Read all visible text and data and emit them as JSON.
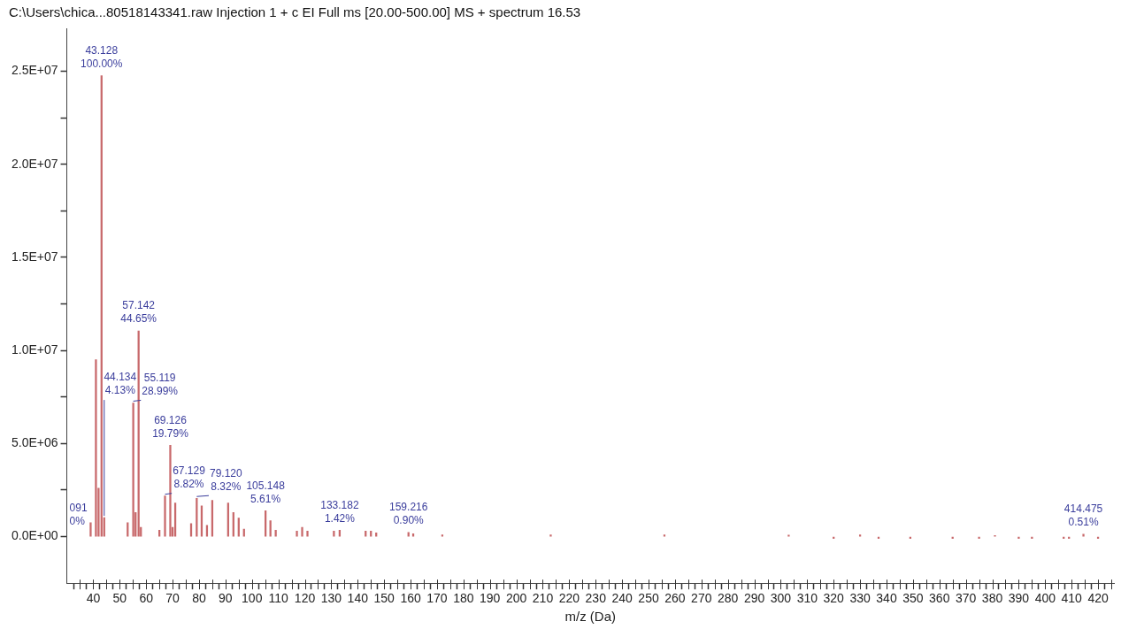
{
  "chart_data": {
    "type": "bar",
    "title": "C:\\Users\\chica...80518143341.raw Injection 1 + c EI Full ms [20.00-500.00] MS + spectrum 16.53",
    "xlabel": "m/z (Da)",
    "color": "#c8696b",
    "x": [
      39,
      41,
      42,
      43.128,
      44.134,
      53,
      55.119,
      56,
      57.142,
      58,
      65,
      67.129,
      69.126,
      70,
      71,
      77,
      79.12,
      81,
      83,
      85,
      91,
      93,
      95,
      97,
      105.148,
      107,
      109,
      117,
      119,
      121,
      131,
      133.182,
      143,
      145,
      147,
      159.216,
      161,
      172,
      213,
      256,
      303,
      320,
      330,
      337,
      349,
      365,
      375,
      381,
      390,
      395,
      407,
      409,
      414.475,
      420
    ],
    "values": [
      750000,
      9500000,
      2600000,
      24760000,
      1020000,
      750000,
      7180000,
      1300000,
      11050000,
      500000,
      350000,
      2180000,
      4900000,
      500000,
      1800000,
      700000,
      2060000,
      1650000,
      600000,
      1950000,
      1800000,
      1300000,
      1000000,
      400000,
      1390000,
      850000,
      350000,
      300000,
      500000,
      300000,
      300000,
      350000,
      300000,
      300000,
      200000,
      220000,
      150000,
      100000,
      100000,
      100000,
      80000,
      -100000,
      100000,
      -100000,
      -100000,
      -100000,
      -100000,
      60000,
      -100000,
      -100000,
      -100000,
      -100000,
      130000,
      -100000
    ],
    "xlim": [
      30,
      426
    ],
    "ylim": [
      -2500000,
      27300000
    ],
    "xticks": [
      {
        "value": 35,
        "label": null
      },
      40,
      {
        "value": 45,
        "label": null
      },
      50,
      {
        "value": 55,
        "label": null
      },
      60,
      {
        "value": 65,
        "label": null
      },
      70,
      {
        "value": 75,
        "label": null
      },
      80,
      {
        "value": 85,
        "label": null
      },
      90,
      {
        "value": 95,
        "label": null
      },
      100,
      {
        "value": 105,
        "label": null
      },
      110,
      {
        "value": 115,
        "label": null
      },
      120,
      {
        "value": 125,
        "label": null
      },
      130,
      {
        "value": 135,
        "label": null
      },
      140,
      {
        "value": 145,
        "label": null
      },
      150,
      {
        "value": 155,
        "label": null
      },
      160,
      {
        "value": 165,
        "label": null
      },
      170,
      {
        "value": 175,
        "label": null
      },
      180,
      {
        "value": 185,
        "label": null
      },
      190,
      {
        "value": 195,
        "label": null
      },
      200,
      {
        "value": 205,
        "label": null
      },
      210,
      {
        "value": 215,
        "label": null
      },
      220,
      {
        "value": 225,
        "label": null
      },
      230,
      {
        "value": 235,
        "label": null
      },
      240,
      {
        "value": 245,
        "label": null
      },
      250,
      {
        "value": 255,
        "label": null
      },
      260,
      {
        "value": 265,
        "label": null
      },
      270,
      {
        "value": 275,
        "label": null
      },
      280,
      {
        "value": 285,
        "label": null
      },
      290,
      {
        "value": 295,
        "label": null
      },
      300,
      {
        "value": 305,
        "label": null
      },
      310,
      {
        "value": 315,
        "label": null
      },
      320,
      {
        "value": 325,
        "label": null
      },
      330,
      {
        "value": 335,
        "label": null
      },
      340,
      {
        "value": 345,
        "label": null
      },
      350,
      {
        "value": 355,
        "label": null
      },
      360,
      {
        "value": 365,
        "label": null
      },
      370,
      {
        "value": 375,
        "label": null
      },
      380,
      {
        "value": 385,
        "label": null
      },
      390,
      {
        "value": 395,
        "label": null
      },
      400,
      {
        "value": 405,
        "label": null
      },
      410,
      {
        "value": 415,
        "label": null
      },
      420,
      {
        "value": 425,
        "label": null
      }
    ],
    "yticks": [
      {
        "value": 0,
        "label": "0.0E+00"
      },
      {
        "value": 2500000,
        "label": null
      },
      {
        "value": 5000000,
        "label": "5.0E+06"
      },
      {
        "value": 7500000,
        "label": null
      },
      {
        "value": 10000000,
        "label": "1.0E+07"
      },
      {
        "value": 12500000,
        "label": null
      },
      {
        "value": 15000000,
        "label": "1.5E+07"
      },
      {
        "value": 17500000,
        "label": null
      },
      {
        "value": 20000000,
        "label": "2.0E+07"
      },
      {
        "value": 22500000,
        "label": null
      },
      {
        "value": 25000000,
        "label": "2.5E+07"
      }
    ],
    "annotations": [
      {
        "text": "43.128\n100.00%",
        "x": 43.128,
        "y": 24760000
      },
      {
        "text": "57.142\n44.65%",
        "x": 57.142,
        "y": 11050000
      },
      {
        "text": "55.119\n28.99%",
        "x": 55.119,
        "y": 7180000
      },
      {
        "text": "69.126\n19.79%",
        "x": 69.126,
        "y": 4900000
      },
      {
        "text": "67.129\n8.82%",
        "x": 67.129,
        "y": 2180000
      },
      {
        "text": "79.120\n8.32%",
        "x": 79.12,
        "y": 2060000
      },
      {
        "text": "105.148\n5.61%",
        "x": 105.148,
        "y": 1390000
      },
      {
        "text": "44.134\n4.13%",
        "x": 44.134,
        "y": 1020000
      },
      {
        "text": "133.182\n1.42%",
        "x": 133.182,
        "y": 350000
      },
      {
        "text": "159.216\n0.90%",
        "x": 159.216,
        "y": 220000
      },
      {
        "text": "414.475\n0.51%",
        "x": 414.475,
        "y": 130000
      },
      "091\n0%"
    ]
  }
}
